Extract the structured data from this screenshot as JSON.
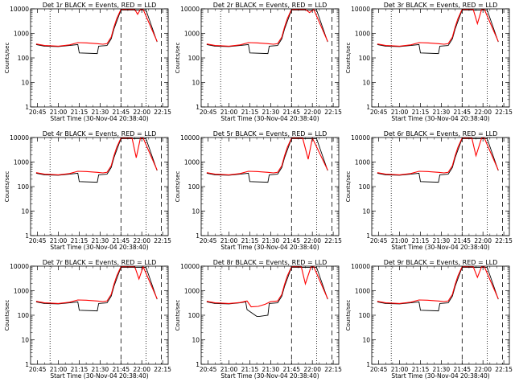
{
  "chart_data": [
    {
      "type": "line",
      "title": "Det 1r BLACK = Events, RED = LLD",
      "xlabel": "Start Time (30-Nov-04 20:38:40)",
      "ylabel": "Counts/sec",
      "yscale": "log",
      "ylim": [
        1,
        10000
      ],
      "xticks": [
        "20:45",
        "21:00",
        "21:15",
        "21:30",
        "21:45",
        "22:00",
        "22:15"
      ],
      "yticks": [
        "1",
        "10",
        "100",
        "1000",
        "10000"
      ],
      "dotted_lines": [
        "20:54",
        "22:03"
      ],
      "dashed_lines": [
        "21:45",
        "22:14"
      ],
      "series": [
        {
          "color": "#000000",
          "x": [
            "20:44",
            "20:50",
            "21:00",
            "21:08",
            "21:14",
            "21:15",
            "21:28",
            "21:29",
            "21:35",
            "21:38",
            "21:40",
            "21:45",
            "22:00",
            "22:03",
            "22:11"
          ],
          "y": [
            350,
            300,
            290,
            320,
            350,
            160,
            150,
            300,
            320,
            600,
            1500,
            9000,
            9000,
            9000,
            450
          ]
        },
        {
          "color": "#ff0000",
          "x": [
            "20:44",
            "20:50",
            "21:00",
            "21:08",
            "21:14",
            "21:20",
            "21:28",
            "21:32",
            "21:35",
            "21:38",
            "21:40",
            "21:42",
            "21:45",
            "21:55",
            "21:57",
            "21:59",
            "22:01",
            "22:11"
          ],
          "y": [
            370,
            320,
            300,
            340,
            420,
            410,
            380,
            360,
            380,
            700,
            1800,
            4000,
            9500,
            9500,
            6000,
            9500,
            9500,
            470
          ]
        }
      ]
    },
    {
      "type": "line",
      "title": "Det 2r BLACK = Events, RED = LLD",
      "xlabel": "Start Time (30-Nov-04 20:38:40)",
      "ylabel": "Counts/sec",
      "yscale": "log",
      "ylim": [
        1,
        10000
      ],
      "xticks": [
        "20:45",
        "21:00",
        "21:15",
        "21:30",
        "21:45",
        "22:00",
        "22:15"
      ],
      "yticks": [
        "1",
        "10",
        "100",
        "1000",
        "10000"
      ],
      "dotted_lines": [
        "20:54",
        "22:03"
      ],
      "dashed_lines": [
        "21:45",
        "22:14"
      ],
      "series": [
        {
          "color": "#000000",
          "x": [
            "20:44",
            "20:50",
            "21:00",
            "21:08",
            "21:14",
            "21:15",
            "21:28",
            "21:29",
            "21:35",
            "21:38",
            "21:40",
            "21:45",
            "22:00",
            "22:03",
            "22:11"
          ],
          "y": [
            350,
            300,
            290,
            320,
            350,
            160,
            150,
            300,
            320,
            600,
            1500,
            9000,
            9000,
            9000,
            450
          ]
        },
        {
          "color": "#ff0000",
          "x": [
            "20:44",
            "20:50",
            "21:00",
            "21:08",
            "21:14",
            "21:20",
            "21:28",
            "21:32",
            "21:35",
            "21:38",
            "21:40",
            "21:42",
            "21:45",
            "21:55",
            "21:58",
            "22:01",
            "22:11"
          ],
          "y": [
            370,
            320,
            300,
            340,
            420,
            410,
            380,
            360,
            380,
            700,
            1800,
            4000,
            9500,
            9500,
            7000,
            9500,
            470
          ]
        }
      ]
    },
    {
      "type": "line",
      "title": "Det 3r BLACK = Events, RED = LLD",
      "xlabel": "Start Time (30-Nov-04 20:38:40)",
      "ylabel": "Counts/sec",
      "yscale": "log",
      "ylim": [
        1,
        10000
      ],
      "xticks": [
        "20:45",
        "21:00",
        "21:15",
        "21:30",
        "21:45",
        "22:00",
        "22:15"
      ],
      "yticks": [
        "1",
        "10",
        "100",
        "1000",
        "10000"
      ],
      "dotted_lines": [
        "20:54",
        "22:03"
      ],
      "dashed_lines": [
        "21:45",
        "22:14"
      ],
      "series": [
        {
          "color": "#000000",
          "x": [
            "20:44",
            "20:50",
            "21:00",
            "21:08",
            "21:14",
            "21:15",
            "21:28",
            "21:29",
            "21:35",
            "21:38",
            "21:40",
            "21:45",
            "22:00",
            "22:03",
            "22:11"
          ],
          "y": [
            350,
            300,
            290,
            320,
            350,
            160,
            150,
            300,
            320,
            600,
            1500,
            9000,
            9000,
            9000,
            450
          ]
        },
        {
          "color": "#ff0000",
          "x": [
            "20:44",
            "20:50",
            "21:00",
            "21:08",
            "21:14",
            "21:20",
            "21:28",
            "21:32",
            "21:35",
            "21:38",
            "21:40",
            "21:42",
            "21:45",
            "21:53",
            "21:56",
            "21:59",
            "22:01",
            "22:11"
          ],
          "y": [
            370,
            320,
            300,
            340,
            420,
            410,
            380,
            360,
            380,
            700,
            1800,
            4000,
            9500,
            9500,
            2500,
            9500,
            9500,
            470
          ]
        }
      ]
    },
    {
      "type": "line",
      "title": "Det 4r BLACK = Events, RED = LLD",
      "xlabel": "Start Time (30-Nov-04 20:38:40)",
      "ylabel": "Counts/sec",
      "yscale": "log",
      "ylim": [
        1,
        10000
      ],
      "xticks": [
        "20:45",
        "21:00",
        "21:15",
        "21:30",
        "21:45",
        "22:00",
        "22:15"
      ],
      "yticks": [
        "1",
        "10",
        "100",
        "1000",
        "10000"
      ],
      "dotted_lines": [
        "20:54",
        "22:03"
      ],
      "dashed_lines": [
        "21:45",
        "22:14"
      ],
      "series": [
        {
          "color": "#000000",
          "x": [
            "20:44",
            "20:50",
            "21:00",
            "21:08",
            "21:14",
            "21:15",
            "21:28",
            "21:29",
            "21:35",
            "21:38",
            "21:40",
            "21:45",
            "22:00",
            "22:03",
            "22:11"
          ],
          "y": [
            350,
            300,
            290,
            320,
            350,
            160,
            150,
            300,
            320,
            600,
            1500,
            9000,
            9000,
            9000,
            450
          ]
        },
        {
          "color": "#ff0000",
          "x": [
            "20:44",
            "20:50",
            "21:00",
            "21:08",
            "21:14",
            "21:20",
            "21:28",
            "21:32",
            "21:35",
            "21:38",
            "21:40",
            "21:42",
            "21:45",
            "21:53",
            "21:56",
            "21:59",
            "22:01",
            "22:11"
          ],
          "y": [
            370,
            320,
            300,
            340,
            420,
            410,
            380,
            360,
            380,
            700,
            1800,
            4000,
            9500,
            9500,
            1500,
            9500,
            9500,
            470
          ]
        }
      ]
    },
    {
      "type": "line",
      "title": "Det 5r BLACK = Events, RED = LLD",
      "xlabel": "Start Time (30-Nov-04 20:38:40)",
      "ylabel": "Counts/sec",
      "yscale": "log",
      "ylim": [
        1,
        10000
      ],
      "xticks": [
        "20:45",
        "21:00",
        "21:15",
        "21:30",
        "21:45",
        "22:00",
        "22:15"
      ],
      "yticks": [
        "1",
        "10",
        "100",
        "1000",
        "10000"
      ],
      "dotted_lines": [
        "20:54",
        "22:03"
      ],
      "dashed_lines": [
        "21:45",
        "22:14"
      ],
      "series": [
        {
          "color": "#000000",
          "x": [
            "20:44",
            "20:50",
            "21:00",
            "21:08",
            "21:14",
            "21:15",
            "21:28",
            "21:29",
            "21:35",
            "21:38",
            "21:40",
            "21:45",
            "22:00",
            "22:03",
            "22:11"
          ],
          "y": [
            350,
            300,
            290,
            320,
            350,
            160,
            150,
            300,
            320,
            600,
            1500,
            9000,
            9000,
            9000,
            450
          ]
        },
        {
          "color": "#ff0000",
          "x": [
            "20:44",
            "20:50",
            "21:00",
            "21:08",
            "21:14",
            "21:20",
            "21:28",
            "21:32",
            "21:35",
            "21:38",
            "21:40",
            "21:42",
            "21:45",
            "21:53",
            "21:57",
            "22:00",
            "22:11"
          ],
          "y": [
            370,
            320,
            300,
            340,
            420,
            410,
            380,
            360,
            380,
            700,
            1800,
            4000,
            9500,
            9500,
            1300,
            9500,
            470
          ]
        }
      ]
    },
    {
      "type": "line",
      "title": "Det 6r BLACK = Events, RED = LLD",
      "xlabel": "Start Time (30-Nov-04 20:38:40)",
      "ylabel": "Counts/sec",
      "yscale": "log",
      "ylim": [
        1,
        10000
      ],
      "xticks": [
        "20:45",
        "21:00",
        "21:15",
        "21:30",
        "21:45",
        "22:00",
        "22:15"
      ],
      "yticks": [
        "1",
        "10",
        "100",
        "1000",
        "10000"
      ],
      "dotted_lines": [
        "20:54",
        "22:03"
      ],
      "dashed_lines": [
        "21:45",
        "22:14"
      ],
      "series": [
        {
          "color": "#000000",
          "x": [
            "20:44",
            "20:50",
            "21:00",
            "21:08",
            "21:14",
            "21:15",
            "21:28",
            "21:29",
            "21:35",
            "21:38",
            "21:40",
            "21:45",
            "22:00",
            "22:03",
            "22:11"
          ],
          "y": [
            350,
            300,
            290,
            320,
            350,
            160,
            150,
            300,
            320,
            600,
            1500,
            9000,
            9000,
            9000,
            450
          ]
        },
        {
          "color": "#ff0000",
          "x": [
            "20:44",
            "20:50",
            "21:00",
            "21:08",
            "21:14",
            "21:20",
            "21:28",
            "21:32",
            "21:35",
            "21:38",
            "21:40",
            "21:42",
            "21:45",
            "21:52",
            "21:55",
            "21:59",
            "22:01",
            "22:11"
          ],
          "y": [
            370,
            320,
            300,
            340,
            420,
            410,
            380,
            360,
            380,
            700,
            1800,
            4000,
            9500,
            9500,
            1800,
            9500,
            9500,
            470
          ]
        }
      ]
    },
    {
      "type": "line",
      "title": "Det 7r BLACK = Events, RED = LLD",
      "xlabel": "Start Time (30-Nov-04 20:38:40)",
      "ylabel": "Counts/sec",
      "yscale": "log",
      "ylim": [
        1,
        10000
      ],
      "xticks": [
        "20:45",
        "21:00",
        "21:15",
        "21:30",
        "21:45",
        "22:00",
        "22:15"
      ],
      "yticks": [
        "1",
        "10",
        "100",
        "1000",
        "10000"
      ],
      "dotted_lines": [
        "20:54",
        "22:03"
      ],
      "dashed_lines": [
        "21:45",
        "22:14"
      ],
      "series": [
        {
          "color": "#000000",
          "x": [
            "20:44",
            "20:50",
            "21:00",
            "21:08",
            "21:14",
            "21:15",
            "21:28",
            "21:29",
            "21:35",
            "21:38",
            "21:40",
            "21:45",
            "22:00",
            "22:03",
            "22:11"
          ],
          "y": [
            350,
            300,
            290,
            320,
            350,
            160,
            150,
            300,
            320,
            600,
            1500,
            9000,
            9000,
            9000,
            450
          ]
        },
        {
          "color": "#ff0000",
          "x": [
            "20:44",
            "20:50",
            "21:00",
            "21:08",
            "21:14",
            "21:20",
            "21:28",
            "21:32",
            "21:35",
            "21:38",
            "21:40",
            "21:42",
            "21:45",
            "21:55",
            "21:58",
            "22:01",
            "22:11"
          ],
          "y": [
            370,
            320,
            300,
            340,
            420,
            410,
            380,
            360,
            380,
            700,
            1800,
            4000,
            9500,
            9500,
            3000,
            9500,
            470
          ]
        }
      ]
    },
    {
      "type": "line",
      "title": "Det 8r BLACK = Events, RED = LLD",
      "xlabel": "Start Time (30-Nov-04 20:38:40)",
      "ylabel": "Counts/sec",
      "yscale": "log",
      "ylim": [
        1,
        10000
      ],
      "xticks": [
        "20:45",
        "21:00",
        "21:15",
        "21:30",
        "21:45",
        "22:00",
        "22:15"
      ],
      "yticks": [
        "1",
        "10",
        "100",
        "1000",
        "10000"
      ],
      "dotted_lines": [
        "20:54",
        "22:03"
      ],
      "dashed_lines": [
        "21:45",
        "22:14"
      ],
      "series": [
        {
          "color": "#000000",
          "x": [
            "20:44",
            "20:50",
            "21:00",
            "21:08",
            "21:12",
            "21:13",
            "21:20",
            "21:22",
            "21:28",
            "21:29",
            "21:35",
            "21:38",
            "21:40",
            "21:45",
            "22:00",
            "22:03",
            "22:11"
          ],
          "y": [
            350,
            300,
            290,
            320,
            350,
            170,
            90,
            90,
            100,
            300,
            320,
            600,
            1500,
            9000,
            9000,
            9000,
            450
          ]
        },
        {
          "color": "#ff0000",
          "x": [
            "20:44",
            "20:50",
            "21:00",
            "21:08",
            "21:13",
            "21:16",
            "21:21",
            "21:26",
            "21:30",
            "21:35",
            "21:38",
            "21:40",
            "21:42",
            "21:45",
            "21:52",
            "21:55",
            "21:59",
            "22:01",
            "22:11"
          ],
          "y": [
            370,
            320,
            300,
            330,
            380,
            220,
            230,
            280,
            360,
            380,
            700,
            1800,
            4000,
            9500,
            9500,
            1900,
            9500,
            9500,
            470
          ]
        }
      ]
    },
    {
      "type": "line",
      "title": "Det 9r BLACK = Events, RED = LLD",
      "xlabel": "Start Time (30-Nov-04 20:38:40)",
      "ylabel": "Counts/sec",
      "yscale": "log",
      "ylim": [
        1,
        10000
      ],
      "xticks": [
        "20:45",
        "21:00",
        "21:15",
        "21:30",
        "21:45",
        "22:00",
        "22:15"
      ],
      "yticks": [
        "1",
        "10",
        "100",
        "1000",
        "10000"
      ],
      "dotted_lines": [
        "20:54",
        "22:03"
      ],
      "dashed_lines": [
        "21:45",
        "22:14"
      ],
      "series": [
        {
          "color": "#000000",
          "x": [
            "20:44",
            "20:50",
            "21:00",
            "21:08",
            "21:14",
            "21:15",
            "21:28",
            "21:29",
            "21:35",
            "21:38",
            "21:40",
            "21:45",
            "22:00",
            "22:03",
            "22:11"
          ],
          "y": [
            350,
            300,
            290,
            320,
            350,
            160,
            150,
            300,
            320,
            600,
            1500,
            9000,
            9000,
            9000,
            450
          ]
        },
        {
          "color": "#ff0000",
          "x": [
            "20:44",
            "20:50",
            "21:00",
            "21:08",
            "21:14",
            "21:20",
            "21:28",
            "21:32",
            "21:35",
            "21:38",
            "21:40",
            "21:42",
            "21:45",
            "21:53",
            "21:56",
            "21:59",
            "22:01",
            "22:11"
          ],
          "y": [
            370,
            320,
            300,
            340,
            420,
            410,
            380,
            360,
            380,
            700,
            1800,
            4000,
            9500,
            9500,
            3500,
            9500,
            9500,
            470
          ]
        }
      ]
    }
  ]
}
